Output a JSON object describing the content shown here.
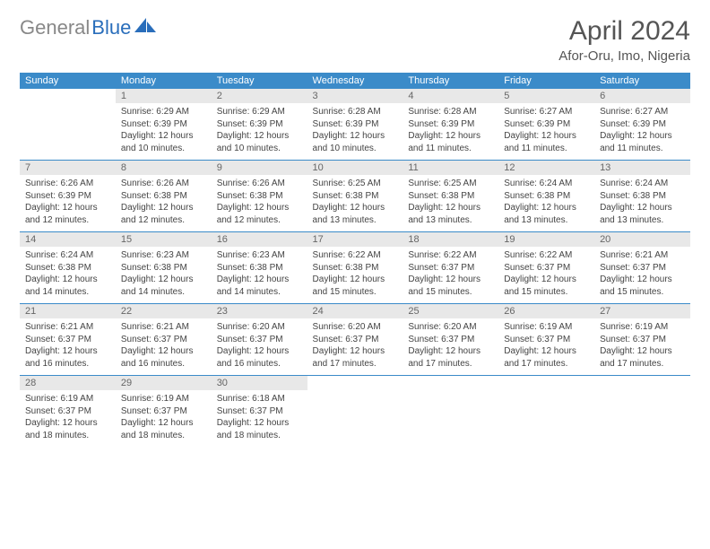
{
  "logo": {
    "gray": "General",
    "blue": "Blue"
  },
  "title": "April 2024",
  "location": "Afor-Oru, Imo, Nigeria",
  "colors": {
    "header_bg": "#3b8bc9",
    "header_text": "#ffffff",
    "daynum_bg": "#e8e8e8",
    "daynum_text": "#666666",
    "body_text": "#444444",
    "rule": "#3b8bc9",
    "logo_gray": "#888888",
    "logo_blue": "#2a6ebb",
    "title_color": "#555555"
  },
  "typography": {
    "title_fontsize": 30,
    "location_fontsize": 15,
    "header_fontsize": 11,
    "daynum_fontsize": 11,
    "content_fontsize": 10
  },
  "day_names": [
    "Sunday",
    "Monday",
    "Tuesday",
    "Wednesday",
    "Thursday",
    "Friday",
    "Saturday"
  ],
  "weeks": [
    [
      null,
      {
        "n": "1",
        "sr": "6:29 AM",
        "ss": "6:39 PM",
        "dl": "12 hours and 10 minutes."
      },
      {
        "n": "2",
        "sr": "6:29 AM",
        "ss": "6:39 PM",
        "dl": "12 hours and 10 minutes."
      },
      {
        "n": "3",
        "sr": "6:28 AM",
        "ss": "6:39 PM",
        "dl": "12 hours and 10 minutes."
      },
      {
        "n": "4",
        "sr": "6:28 AM",
        "ss": "6:39 PM",
        "dl": "12 hours and 11 minutes."
      },
      {
        "n": "5",
        "sr": "6:27 AM",
        "ss": "6:39 PM",
        "dl": "12 hours and 11 minutes."
      },
      {
        "n": "6",
        "sr": "6:27 AM",
        "ss": "6:39 PM",
        "dl": "12 hours and 11 minutes."
      }
    ],
    [
      {
        "n": "7",
        "sr": "6:26 AM",
        "ss": "6:39 PM",
        "dl": "12 hours and 12 minutes."
      },
      {
        "n": "8",
        "sr": "6:26 AM",
        "ss": "6:38 PM",
        "dl": "12 hours and 12 minutes."
      },
      {
        "n": "9",
        "sr": "6:26 AM",
        "ss": "6:38 PM",
        "dl": "12 hours and 12 minutes."
      },
      {
        "n": "10",
        "sr": "6:25 AM",
        "ss": "6:38 PM",
        "dl": "12 hours and 13 minutes."
      },
      {
        "n": "11",
        "sr": "6:25 AM",
        "ss": "6:38 PM",
        "dl": "12 hours and 13 minutes."
      },
      {
        "n": "12",
        "sr": "6:24 AM",
        "ss": "6:38 PM",
        "dl": "12 hours and 13 minutes."
      },
      {
        "n": "13",
        "sr": "6:24 AM",
        "ss": "6:38 PM",
        "dl": "12 hours and 13 minutes."
      }
    ],
    [
      {
        "n": "14",
        "sr": "6:24 AM",
        "ss": "6:38 PM",
        "dl": "12 hours and 14 minutes."
      },
      {
        "n": "15",
        "sr": "6:23 AM",
        "ss": "6:38 PM",
        "dl": "12 hours and 14 minutes."
      },
      {
        "n": "16",
        "sr": "6:23 AM",
        "ss": "6:38 PM",
        "dl": "12 hours and 14 minutes."
      },
      {
        "n": "17",
        "sr": "6:22 AM",
        "ss": "6:38 PM",
        "dl": "12 hours and 15 minutes."
      },
      {
        "n": "18",
        "sr": "6:22 AM",
        "ss": "6:37 PM",
        "dl": "12 hours and 15 minutes."
      },
      {
        "n": "19",
        "sr": "6:22 AM",
        "ss": "6:37 PM",
        "dl": "12 hours and 15 minutes."
      },
      {
        "n": "20",
        "sr": "6:21 AM",
        "ss": "6:37 PM",
        "dl": "12 hours and 15 minutes."
      }
    ],
    [
      {
        "n": "21",
        "sr": "6:21 AM",
        "ss": "6:37 PM",
        "dl": "12 hours and 16 minutes."
      },
      {
        "n": "22",
        "sr": "6:21 AM",
        "ss": "6:37 PM",
        "dl": "12 hours and 16 minutes."
      },
      {
        "n": "23",
        "sr": "6:20 AM",
        "ss": "6:37 PM",
        "dl": "12 hours and 16 minutes."
      },
      {
        "n": "24",
        "sr": "6:20 AM",
        "ss": "6:37 PM",
        "dl": "12 hours and 17 minutes."
      },
      {
        "n": "25",
        "sr": "6:20 AM",
        "ss": "6:37 PM",
        "dl": "12 hours and 17 minutes."
      },
      {
        "n": "26",
        "sr": "6:19 AM",
        "ss": "6:37 PM",
        "dl": "12 hours and 17 minutes."
      },
      {
        "n": "27",
        "sr": "6:19 AM",
        "ss": "6:37 PM",
        "dl": "12 hours and 17 minutes."
      }
    ],
    [
      {
        "n": "28",
        "sr": "6:19 AM",
        "ss": "6:37 PM",
        "dl": "12 hours and 18 minutes."
      },
      {
        "n": "29",
        "sr": "6:19 AM",
        "ss": "6:37 PM",
        "dl": "12 hours and 18 minutes."
      },
      {
        "n": "30",
        "sr": "6:18 AM",
        "ss": "6:37 PM",
        "dl": "12 hours and 18 minutes."
      },
      null,
      null,
      null,
      null
    ]
  ],
  "labels": {
    "sunrise": "Sunrise:",
    "sunset": "Sunset:",
    "daylight": "Daylight:"
  }
}
